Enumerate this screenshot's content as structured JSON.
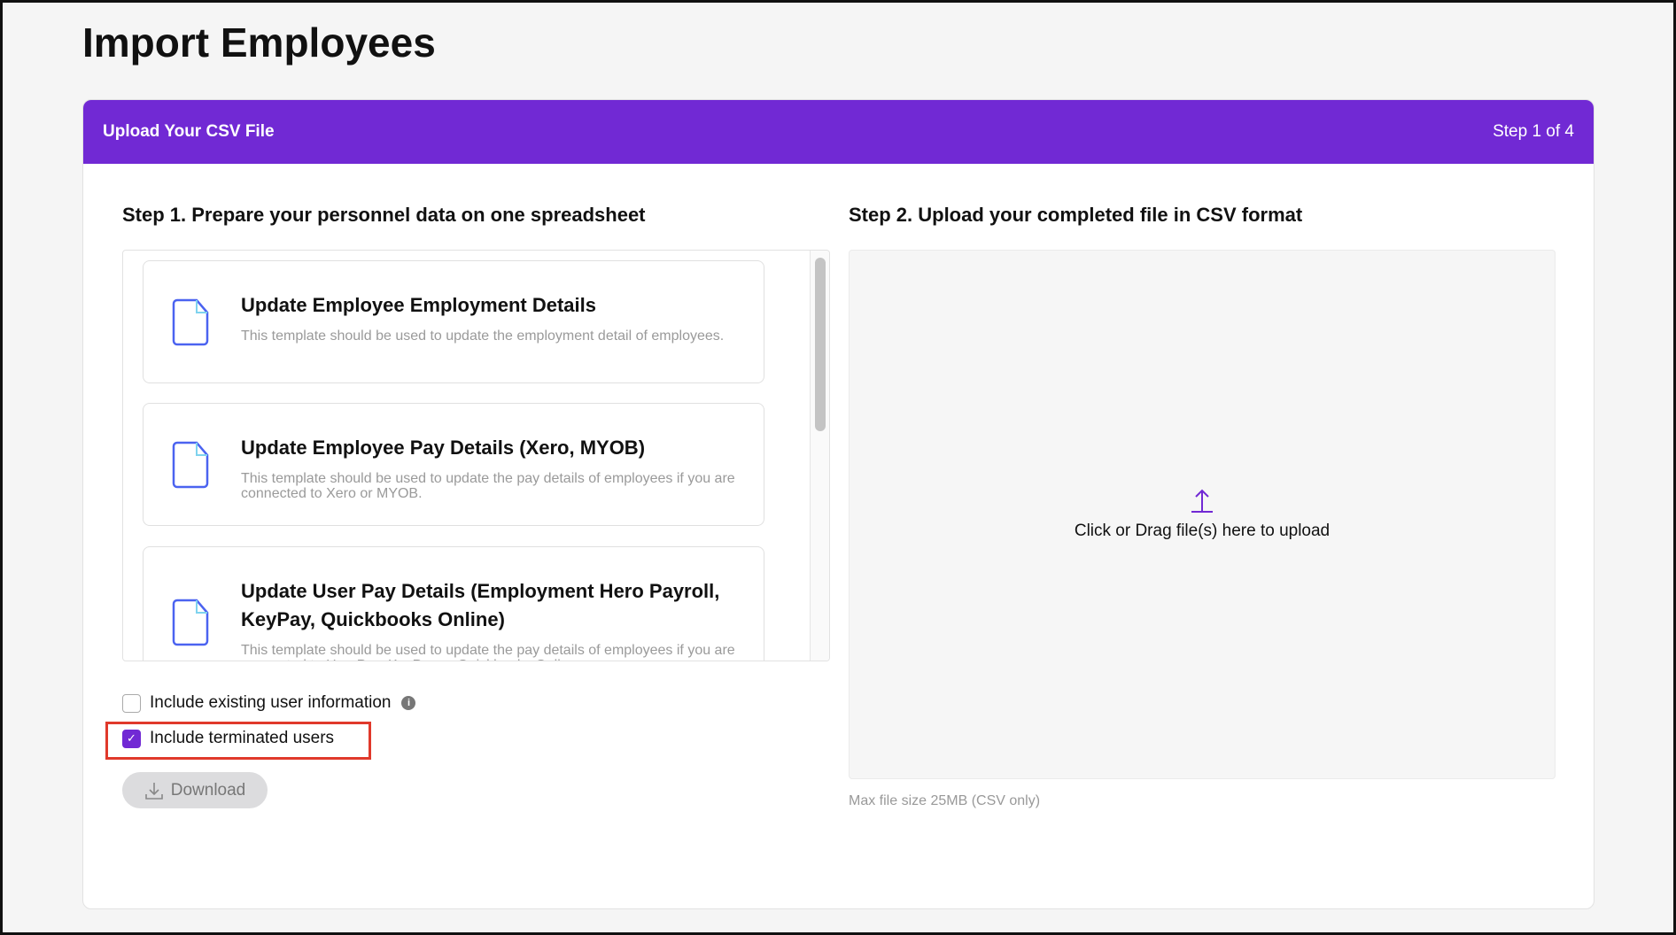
{
  "page_title": "Import Employees",
  "header": {
    "title": "Upload Your CSV File",
    "step": "Step 1 of 4"
  },
  "step1": {
    "heading": "Step 1. Prepare your personnel data on one spreadsheet",
    "templates": [
      {
        "title": "Update Employee Employment Details",
        "desc": "This template should be used to update the employment detail of employees."
      },
      {
        "title": "Update Employee Pay Details (Xero, MYOB)",
        "desc": "This template should be used to update the pay details of employees if you are connected to Xero or MYOB."
      },
      {
        "title": "Update User Pay Details (Employment Hero Payroll, KeyPay, Quickbooks Online)",
        "desc": "This template should be used to update the pay details of employees if you are connected to HeroPay, KeyPay or Quickbooks Online."
      }
    ],
    "options": [
      {
        "label": "Include existing user information",
        "checked": false
      },
      {
        "label": "Include terminated users",
        "checked": true
      }
    ],
    "download_label": "Download"
  },
  "step2": {
    "heading": "Step 2. Upload your completed file in CSV format",
    "dropzone": "Click or Drag file(s) here to upload",
    "max_size": "Max file size 25MB (CSV only)"
  },
  "colors": {
    "accent": "#7129d4",
    "highlight": "#e0392b"
  }
}
